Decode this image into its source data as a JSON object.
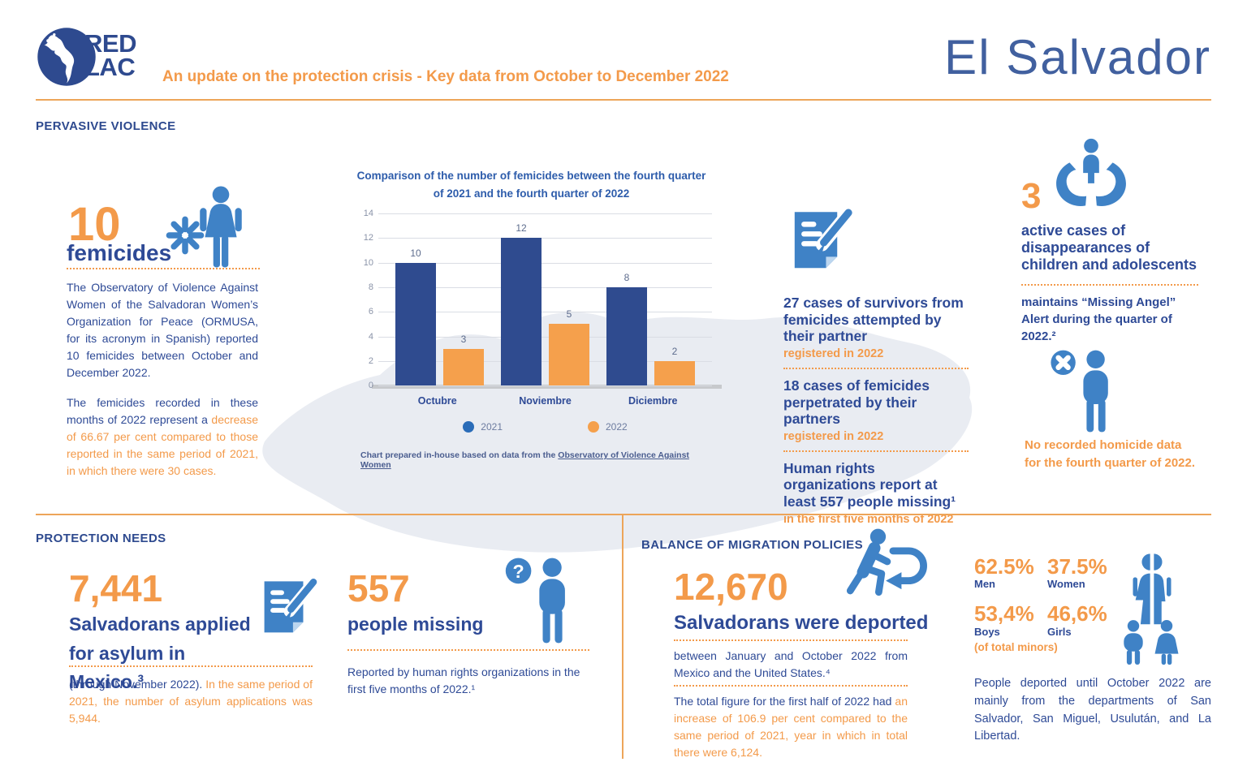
{
  "header": {
    "logo_line1": "RED",
    "logo_line2": "LAC",
    "tagline": "An update on the protection crisis  - Key data from October to December 2022",
    "country": "El Salvador"
  },
  "pervasive": {
    "title": "PERVASIVE VIOLENCE",
    "femicides": {
      "number": "10",
      "label": "femicides",
      "para1": "The Observatory of Violence Against Women of the Salvadoran Women’s Organization for Peace (ORMUSA, for its acronym in Spanish) reported 10 femicides between October and December 2022.",
      "para2_blue": "The femicides recorded in these months of 2022 represent a ",
      "para2_orange": "decrease of 66.67 per cent compared to those reported in the same period of 2021, in which there were 30 cases."
    },
    "cases": {
      "item1_title": "27 cases of survivors from femicides attempted by their partner",
      "item1_sub": "registered in 2022",
      "item2_title": "18 cases of femicides perpetrated by their partners",
      "item2_sub": "registered in 2022",
      "item3_title": "Human rights organizations report at least 557 people missing¹",
      "item3_sub": "in the first five months of 2022"
    },
    "disappearances": {
      "number": "3",
      "title": "active cases of disappearances of children and adolescents",
      "note": "maintains “Missing Angel” Alert during the quarter of 2022.²"
    },
    "homicide_note": "No recorded homicide data for the fourth quarter of 2022."
  },
  "chart_data": {
    "type": "bar",
    "title": "Comparison of the number of femicides between the fourth quarter of 2021 and the fourth quarter of 2022",
    "categories": [
      "Octubre",
      "Noviembre",
      "Diciembre"
    ],
    "series": [
      {
        "name": "2021",
        "color": "#2f4b8f",
        "values": [
          10,
          12,
          8
        ]
      },
      {
        "name": "2022",
        "color": "#f5a04c",
        "values": [
          3,
          5,
          2
        ]
      }
    ],
    "xlabel": "",
    "ylabel": "",
    "ylim": [
      0,
      14
    ],
    "yticks": [
      0,
      2,
      4,
      6,
      8,
      10,
      12,
      14
    ],
    "grid": true,
    "legend_position": "bottom",
    "legend_colors": {
      "2021": "#2a6cb8",
      "2022": "#f5a04c"
    }
  },
  "chart_footnote": {
    "prefix": "Chart prepared in-house based on data from the ",
    "link": "Observatory of Violence Against Women"
  },
  "protection": {
    "title": "PROTECTION NEEDS",
    "asylum": {
      "number": "7,441",
      "label": "Salvadorans applied for asylum in Mexico.³",
      "note_blue": "(through November 2022). ",
      "note_orange": "In the same period of 2021, the number of asylum applications was 5,944."
    },
    "missing": {
      "number": "557",
      "label": "people missing",
      "note": "Reported by human rights organizations in the first five months of 2022.¹"
    }
  },
  "migration": {
    "title": "BALANCE OF MIGRATION POLICIES",
    "deported": {
      "number": "12,670",
      "label": "Salvadorans were deported",
      "para1": "between January and October 2022 from Mexico and the United States.⁴",
      "para2_blue": "The total figure for the first half of 2022 had ",
      "para2_orange": "an increase of 106.9 per cent compared to the same period of 2021, year in which in total there were 6,124."
    },
    "stats": {
      "men_value": "62.5%",
      "men_label": "Men",
      "women_value": "37.5%",
      "women_label": "Women",
      "boys_value": "53,4%",
      "boys_label": "Boys",
      "girls_value": "46,6%",
      "girls_label": "Girls",
      "minors_note": "(of total minors)"
    },
    "departments_note": "People deported until October 2022 are mainly from the departments of San Salvador, San Miguel, Usulután, and La Libertad."
  }
}
